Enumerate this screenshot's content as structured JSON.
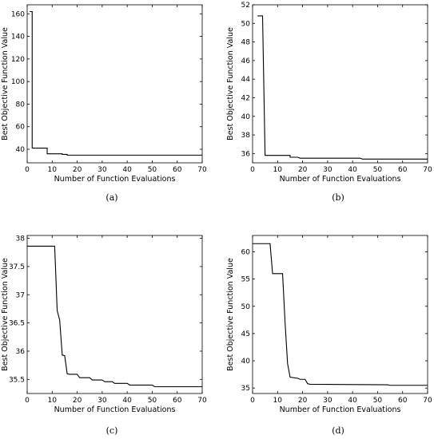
{
  "chart_data": [
    {
      "type": "line",
      "caption": "(a)",
      "xlabel": "Number of Function Evaluations",
      "ylabel": "Best Objective Function Value",
      "xlim": [
        0,
        70
      ],
      "ylim": [
        28,
        168
      ],
      "xticks": [
        0,
        10,
        20,
        30,
        40,
        50,
        60,
        70
      ],
      "yticks": [
        40,
        60,
        80,
        100,
        120,
        140,
        160
      ],
      "ytick_labels": [
        "40",
        "60",
        "80",
        "100",
        "120",
        "140",
        "160"
      ],
      "grid": false,
      "series": [
        {
          "x": [
            1,
            2,
            2,
            8,
            8,
            14,
            14,
            16,
            16,
            70
          ],
          "y": [
            162,
            162,
            41,
            41,
            36,
            36,
            35.5,
            35.5,
            34.8,
            34.8
          ]
        }
      ]
    },
    {
      "type": "line",
      "caption": "(b)",
      "xlabel": "Number of Function Evaluations",
      "ylabel": "Best Objective Function Value",
      "xlim": [
        0,
        70
      ],
      "ylim": [
        35,
        52
      ],
      "xticks": [
        0,
        10,
        20,
        30,
        40,
        50,
        60,
        70
      ],
      "yticks": [
        36,
        38,
        40,
        42,
        44,
        46,
        48,
        50,
        52
      ],
      "ytick_labels": [
        "36",
        "38",
        "40",
        "42",
        "44",
        "46",
        "48",
        "50",
        "52"
      ],
      "grid": false,
      "series": [
        {
          "x": [
            2,
            4,
            5,
            15,
            15,
            18,
            19,
            43,
            44,
            70
          ],
          "y": [
            50.8,
            50.8,
            35.8,
            35.8,
            35.6,
            35.6,
            35.5,
            35.5,
            35.4,
            35.4
          ]
        }
      ]
    },
    {
      "type": "line",
      "caption": "(c)",
      "xlabel": "Number of Function Evaluations",
      "ylabel": "Best Objective Function Value",
      "xlim": [
        0,
        70
      ],
      "ylim": [
        35.25,
        38.05
      ],
      "xticks": [
        0,
        10,
        20,
        30,
        40,
        50,
        60,
        70
      ],
      "yticks": [
        35.5,
        36,
        36.5,
        37,
        37.5,
        38
      ],
      "ytick_labels": [
        "35.5",
        "36",
        "36.5",
        "37",
        "37.5",
        "38"
      ],
      "grid": false,
      "series": [
        {
          "x": [
            0,
            11,
            12,
            13,
            14,
            14,
            15,
            16,
            17,
            20,
            21,
            25,
            26,
            30,
            31,
            34,
            35,
            40,
            41,
            50,
            51,
            70
          ],
          "y": [
            37.86,
            37.86,
            36.72,
            36.55,
            35.95,
            35.93,
            35.92,
            35.6,
            35.59,
            35.59,
            35.53,
            35.53,
            35.49,
            35.49,
            35.46,
            35.46,
            35.43,
            35.43,
            35.4,
            35.4,
            35.37,
            35.37
          ]
        }
      ]
    },
    {
      "type": "line",
      "caption": "(d)",
      "xlabel": "Number of Function Evaluations",
      "ylabel": "Best Objective Function Value",
      "xlim": [
        0,
        70
      ],
      "ylim": [
        34,
        63
      ],
      "xticks": [
        0,
        10,
        20,
        30,
        40,
        50,
        60,
        70
      ],
      "yticks": [
        35,
        40,
        45,
        50,
        55,
        60
      ],
      "ytick_labels": [
        "35",
        "40",
        "45",
        "50",
        "55",
        "60"
      ],
      "grid": false,
      "series": [
        {
          "x": [
            0,
            7,
            8,
            12,
            13,
            14,
            15,
            18,
            19,
            21,
            22,
            23,
            54,
            55,
            70
          ],
          "y": [
            61.5,
            61.5,
            56,
            56,
            47,
            39.5,
            37,
            36.8,
            36.6,
            36.6,
            35.8,
            35.7,
            35.6,
            35.5,
            35.5
          ]
        }
      ]
    }
  ]
}
